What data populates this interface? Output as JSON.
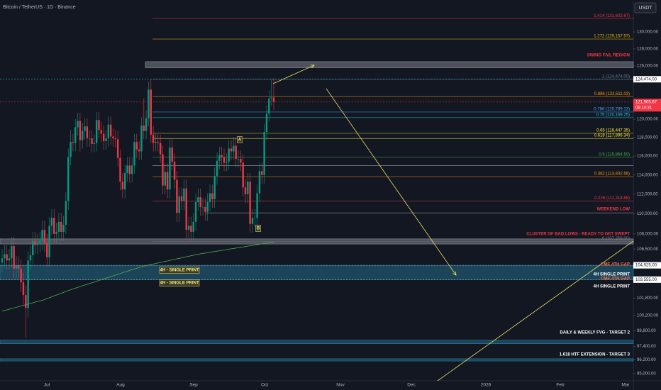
{
  "header": "Bitcoin / TetherUS · 1D · Binance",
  "currency": "USDT",
  "chart_data": {
    "type": "candlestick",
    "log_scale": true,
    "ylim": [
      94370,
      133870
    ],
    "yticks": [
      {
        "value": 130000,
        "label": "130,000.00"
      },
      {
        "value": 128000,
        "label": "128,000.00"
      },
      {
        "value": 126000,
        "label": "126,000.00"
      },
      {
        "value": 120000,
        "label": "120,000.00"
      },
      {
        "value": 118000,
        "label": "118,000.00"
      },
      {
        "value": 116000,
        "label": "116,000.00"
      },
      {
        "value": 114000,
        "label": "114,000.00"
      },
      {
        "value": 112000,
        "label": "112,000.00"
      },
      {
        "value": 110000,
        "label": "110,000.00"
      },
      {
        "value": 108000,
        "label": "108,000.00"
      },
      {
        "value": 106500,
        "label": "106,500.00"
      },
      {
        "value": 101800,
        "label": "101,800.00"
      },
      {
        "value": 100200,
        "label": "100,200.00"
      },
      {
        "value": 98800,
        "label": "98,800.00"
      },
      {
        "value": 97400,
        "label": "97,400.00"
      },
      {
        "value": 96200,
        "label": "96,200.00"
      },
      {
        "value": 95000,
        "label": "95,000.00"
      }
    ],
    "x_labels": [
      "Jul",
      "Aug",
      "Sep",
      "Oct",
      "Nov",
      "Dec",
      "2026",
      "Feb",
      "Mar"
    ],
    "up_color": "#089981",
    "down_color": "#f23645",
    "ohlc": [
      [
        105200,
        106500,
        104300,
        105600
      ],
      [
        105600,
        106900,
        104700,
        106000
      ],
      [
        106000,
        106900,
        104500,
        105400
      ],
      [
        105400,
        106500,
        104500,
        105600
      ],
      [
        105600,
        107700,
        104700,
        106800
      ],
      [
        106800,
        107700,
        103700,
        104600
      ],
      [
        104600,
        105800,
        103700,
        104900
      ],
      [
        104900,
        105800,
        103700,
        104600
      ],
      [
        104600,
        105500,
        102400,
        103300
      ],
      [
        103300,
        104200,
        101200,
        102100
      ],
      [
        102100,
        103000,
        98200,
        100900
      ],
      [
        100900,
        106300,
        100000,
        105400
      ],
      [
        105400,
        106800,
        104500,
        105900
      ],
      [
        105900,
        108200,
        105000,
        107300
      ],
      [
        107300,
        108200,
        106000,
        106900
      ],
      [
        106900,
        108000,
        106000,
        107100
      ],
      [
        107100,
        108200,
        106200,
        107300
      ],
      [
        107300,
        109300,
        106400,
        108400
      ],
      [
        108400,
        109300,
        106200,
        107100
      ],
      [
        107100,
        108000,
        104800,
        105700
      ],
      [
        105700,
        109700,
        104800,
        108800
      ],
      [
        108800,
        110500,
        107900,
        109600
      ],
      [
        109600,
        110500,
        107100,
        108000
      ],
      [
        108000,
        109100,
        107100,
        108200
      ],
      [
        108200,
        110100,
        107300,
        109200
      ],
      [
        109200,
        110100,
        107300,
        108200
      ],
      [
        108200,
        109800,
        107300,
        108900
      ],
      [
        108900,
        112200,
        108000,
        111300
      ],
      [
        111300,
        116800,
        110400,
        115900
      ],
      [
        115900,
        118800,
        115000,
        117500
      ],
      [
        117500,
        118400,
        116500,
        117400
      ],
      [
        117400,
        120000,
        116500,
        119100
      ],
      [
        119100,
        120700,
        118200,
        119800
      ],
      [
        119800,
        120700,
        116500,
        117700
      ],
      [
        117700,
        119600,
        116800,
        118700
      ],
      [
        118700,
        120100,
        117800,
        119200
      ],
      [
        119200,
        120100,
        117000,
        117900
      ],
      [
        117900,
        118800,
        117000,
        117900
      ],
      [
        117900,
        118800,
        116400,
        117300
      ],
      [
        117300,
        118300,
        116400,
        117400
      ],
      [
        117400,
        120800,
        116500,
        119900
      ],
      [
        119900,
        120800,
        117900,
        118800
      ],
      [
        118800,
        119700,
        117500,
        118400
      ],
      [
        118400,
        119300,
        116700,
        117600
      ],
      [
        117600,
        118800,
        116700,
        117900
      ],
      [
        117900,
        120300,
        117000,
        119400
      ],
      [
        119400,
        120300,
        117200,
        118100
      ],
      [
        118100,
        119000,
        117000,
        117900
      ],
      [
        117900,
        118800,
        116900,
        117800
      ],
      [
        117800,
        118700,
        114900,
        115800
      ],
      [
        115800,
        116700,
        112400,
        113300
      ],
      [
        113300,
        114200,
        111600,
        112500
      ],
      [
        112500,
        115100,
        111600,
        114200
      ],
      [
        114200,
        115900,
        113300,
        115000
      ],
      [
        115000,
        115900,
        113200,
        114100
      ],
      [
        114100,
        115900,
        113200,
        115000
      ],
      [
        115000,
        118400,
        114100,
        117500
      ],
      [
        117500,
        118400,
        115800,
        116700
      ],
      [
        116700,
        117600,
        115600,
        116500
      ],
      [
        116500,
        120200,
        115600,
        119300
      ],
      [
        119300,
        122300,
        117800,
        118700
      ],
      [
        118700,
        121000,
        117800,
        120100
      ],
      [
        120100,
        124200,
        119200,
        123300
      ],
      [
        123300,
        124500,
        117400,
        118300
      ],
      [
        118300,
        119200,
        116500,
        117400
      ],
      [
        117400,
        118400,
        116500,
        117500
      ],
      [
        117500,
        118400,
        116500,
        117400
      ],
      [
        117400,
        118300,
        115300,
        116200
      ],
      [
        116200,
        117100,
        112000,
        112900
      ],
      [
        112900,
        115200,
        112000,
        114300
      ],
      [
        114300,
        115200,
        111600,
        112500
      ],
      [
        112500,
        117800,
        111600,
        116900
      ],
      [
        116900,
        117800,
        114500,
        115400
      ],
      [
        115400,
        116300,
        112600,
        113500
      ],
      [
        113500,
        114400,
        109200,
        110100
      ],
      [
        110100,
        112700,
        109200,
        111800
      ],
      [
        111800,
        112700,
        110400,
        111300
      ],
      [
        111300,
        113500,
        110400,
        112600
      ],
      [
        112600,
        113500,
        107500,
        108400
      ],
      [
        108400,
        109700,
        107500,
        108800
      ],
      [
        108800,
        109700,
        107300,
        108200
      ],
      [
        108200,
        110100,
        107300,
        109200
      ],
      [
        109200,
        112100,
        108300,
        111200
      ],
      [
        111200,
        112600,
        110300,
        111700
      ],
      [
        111700,
        112600,
        109800,
        110700
      ],
      [
        110700,
        111600,
        109800,
        110700
      ],
      [
        110700,
        111600,
        109300,
        110200
      ],
      [
        110200,
        112100,
        109300,
        111200
      ],
      [
        111200,
        113000,
        110300,
        112100
      ],
      [
        112100,
        113000,
        110600,
        111500
      ],
      [
        111500,
        114800,
        110600,
        113900
      ],
      [
        113900,
        116400,
        113000,
        115500
      ],
      [
        115500,
        117000,
        114600,
        116100
      ],
      [
        116100,
        117000,
        115000,
        115900
      ],
      [
        115900,
        116800,
        114400,
        115300
      ],
      [
        115300,
        116300,
        114400,
        115400
      ],
      [
        115400,
        117700,
        114500,
        116800
      ],
      [
        116800,
        117700,
        115600,
        116500
      ],
      [
        116500,
        118000,
        115600,
        117100
      ],
      [
        117100,
        118000,
        114800,
        115700
      ],
      [
        115700,
        116600,
        114800,
        115700
      ],
      [
        115700,
        116600,
        114400,
        115300
      ],
      [
        115300,
        116200,
        111800,
        112700
      ],
      [
        112700,
        113600,
        111100,
        112000
      ],
      [
        112000,
        114200,
        111100,
        113300
      ],
      [
        113300,
        114200,
        108100,
        109000
      ],
      [
        109000,
        110500,
        108100,
        109600
      ],
      [
        109600,
        110500,
        108700,
        109600
      ],
      [
        109600,
        113000,
        108700,
        112100
      ],
      [
        112100,
        115300,
        111200,
        114400
      ],
      [
        114400,
        115300,
        113100,
        114000
      ],
      [
        114000,
        119500,
        113100,
        118600
      ],
      [
        118600,
        121500,
        117700,
        120600
      ],
      [
        120600,
        123200,
        119700,
        122300
      ],
      [
        122300,
        124400,
        121500,
        122400
      ],
      [
        122400,
        124600,
        121000,
        121905.67
      ]
    ],
    "ma_color": "#4caf50",
    "ma_values": [
      100600,
      100660,
      100720,
      100780,
      100840,
      100900,
      100960,
      101020,
      101080,
      101140,
      101200,
      101260,
      101320,
      101380,
      101440,
      101500,
      101550,
      101600,
      101680,
      101770,
      101850,
      101930,
      102020,
      102100,
      102180,
      102270,
      102350,
      102430,
      102520,
      102600,
      102670,
      102750,
      102820,
      102890,
      102970,
      103040,
      103110,
      103190,
      103260,
      103330,
      103410,
      103480,
      103550,
      103630,
      103700,
      103770,
      103850,
      103920,
      103990,
      104070,
      104140,
      104210,
      104290,
      104360,
      104430,
      104510,
      104580,
      104650,
      104730,
      104800,
      104850,
      104900,
      104950,
      105000,
      105050,
      105100,
      105150,
      105200,
      105250,
      105300,
      105350,
      105400,
      105450,
      105500,
      105550,
      105600,
      105650,
      105700,
      105750,
      105800,
      105850,
      105900,
      105950,
      106000,
      106040,
      106080,
      106110,
      106150,
      106190,
      106230,
      106260,
      106300,
      106340,
      106380,
      106410,
      106450,
      106490,
      106530,
      106560,
      106600,
      106640,
      106680,
      106710,
      106750,
      106790,
      106830,
      106860,
      106900,
      106940,
      106980,
      107010,
      107050,
      107090,
      107130,
      107160,
      107200
    ],
    "levels": [
      {
        "label": "1.414 (131,602.67)",
        "value": 131602.67,
        "color": "#f23645"
      },
      {
        "label": "1.272 (129,157.57)",
        "value": 129157.57,
        "color": "#f0b90b"
      },
      {
        "label": "1 (124,474.00)",
        "value": 124474,
        "color": "#787b86"
      },
      {
        "label": "0.886 (122,511.03)",
        "value": 122511.03,
        "color": "#ff9800"
      },
      {
        "label": "0.786 (120,789.13)",
        "value": 120789.13,
        "color": "#42a5f5"
      },
      {
        "label": "0.75 (120,169.25)",
        "value": 120169.25,
        "color": "#26c6da"
      },
      {
        "label": "0.65 (118,447.35)",
        "value": 118447.35,
        "color": "#ffeb3b"
      },
      {
        "label": "0.618 (117,896.34)",
        "value": 117896.34,
        "color": "#ffeb3b"
      },
      {
        "label": "0.5 (115,864.50)",
        "value": 115864.5,
        "color": "#4caf50"
      },
      {
        "label": "0.382 (113,832.66)",
        "value": 113832.66,
        "color": "#ff9800"
      },
      {
        "label": "0.226 (111,318.68)",
        "value": 111318.68,
        "color": "#f23645"
      },
      {
        "label": "0 (107,259.00)",
        "value": 107259,
        "color": "#787b86"
      }
    ],
    "lines": [
      {
        "value": 115000,
        "color": "#d1d4dc"
      },
      {
        "value": 110100,
        "color": "#d1d4dc"
      }
    ],
    "zones": [
      {
        "high": 126500,
        "low": 125800,
        "color": "#9598a1"
      },
      {
        "high": 107500,
        "low": 107000,
        "color": "#9598a1"
      },
      {
        "high": 104925,
        "low": 103555,
        "color": "#2a7f9e"
      },
      {
        "high": 97950,
        "low": 97640,
        "color": "#2a7f9e"
      },
      {
        "high": 96300,
        "low": 96100,
        "color": "#2a7f9e"
      }
    ],
    "annotations": [
      {
        "text": "SWING FAIL REGION",
        "color": "#f23645"
      },
      {
        "text": "WEEKEND LOW",
        "color": "#f23645"
      },
      {
        "text": "CLUSTER OF BAD LOWS - READY TO GET SWEPT",
        "color": "#f23645"
      },
      {
        "text": "CME 4TH GAP",
        "color": "#ff7043"
      },
      {
        "text": "4H SINGLE PRINT",
        "color": "#ffffff"
      },
      {
        "text": "CME 4TH GAP",
        "color": "#ff7043"
      },
      {
        "text": "4H SINGLE PRINT",
        "color": "#ffffff"
      },
      {
        "text": "DAILY & WEEKLY FVG - TARGET 2",
        "color": "#ffffff"
      },
      {
        "text": "1.618 HTF EXTENSION - TARGET 3",
        "color": "#ffffff"
      },
      {
        "text": "4H - SINGLE PRINT",
        "color": "#f0e68c"
      },
      {
        "text": "4H - SINGLE PRINT",
        "color": "#f0e68c"
      },
      {
        "text": "A",
        "color": "#f0e68c"
      },
      {
        "text": "B",
        "color": "#f0e68c"
      }
    ],
    "price_tags": [
      {
        "value": 124474,
        "label": "124,474.00",
        "color": "#ffffff",
        "line_color": "#26c6da"
      },
      {
        "value": 121905.67,
        "label": "121,905.67",
        "color": "#f23645",
        "line_color": "#f23645"
      },
      {
        "value": 104925,
        "label": "104,925.00",
        "color": "#ffffff",
        "line_color": "#9fb3c8"
      },
      {
        "value": 103555,
        "label": "103,555.00",
        "color": "#ffffff",
        "line_color": "#9fb3c8"
      }
    ],
    "countdown": "08:14:31"
  }
}
